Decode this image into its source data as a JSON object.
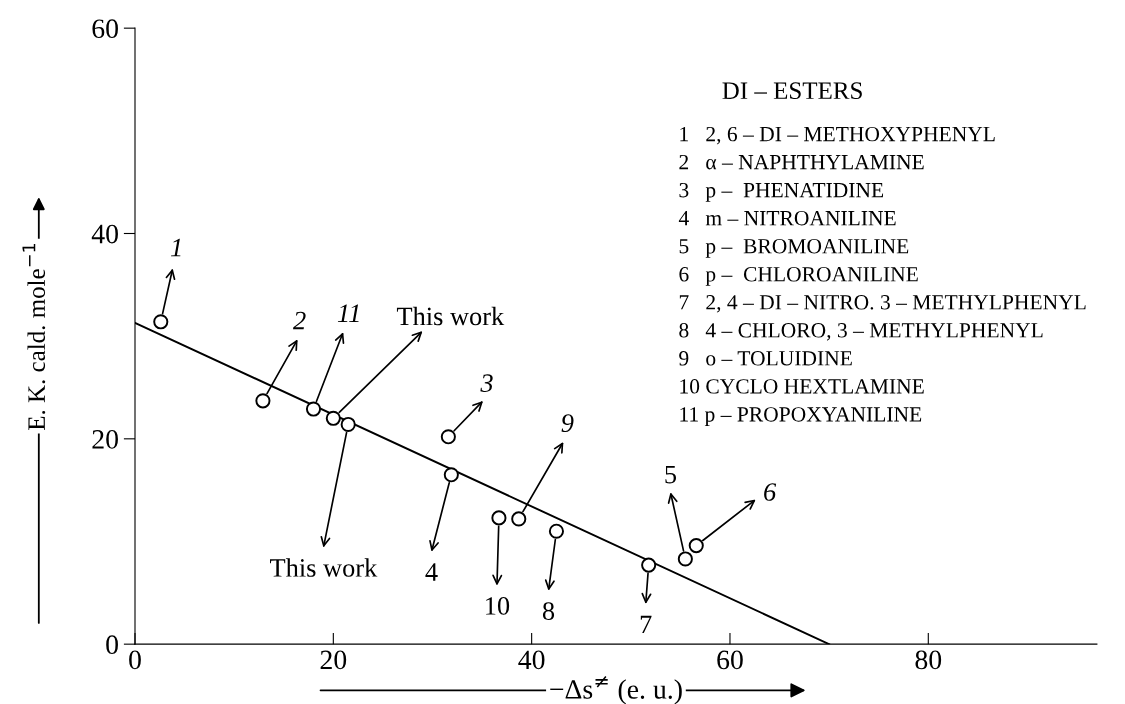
{
  "chart_data": {
    "type": "scatter",
    "xlabel": "−Δs$^{≠}$ (e. u.)",
    "ylabel": "E. K. cald. mole$^{−1}$",
    "xlim": [
      0,
      97
    ],
    "ylim": [
      0,
      60
    ],
    "xticks": [
      0,
      20,
      40,
      60,
      80
    ],
    "yticks": [
      0,
      20,
      40,
      60
    ],
    "grid": false,
    "legend": false,
    "series": [
      {
        "marker": "circle",
        "color": "#000000",
        "x": [
          2.6,
          12.9,
          31.6,
          31.9,
          55.5,
          56.6,
          51.8,
          42.5,
          38.7,
          36.7,
          18.0,
          20.0,
          21.5
        ],
        "values": [
          31.4,
          23.7,
          20.2,
          16.5,
          8.3,
          9.6,
          7.7,
          11.0,
          12.2,
          12.3,
          22.9,
          22.0,
          21.4
        ]
      },
      {
        "type": "line",
        "color": "#000000",
        "x": [
          0,
          70
        ],
        "values": [
          31.3,
          0
        ]
      }
    ],
    "annotations": [
      {
        "text": "1",
        "x": 2.6,
        "y": 31.4
      },
      {
        "text": "2",
        "x": 12.9,
        "y": 23.7
      },
      {
        "text": "3",
        "x": 31.6,
        "y": 20.2
      },
      {
        "text": "4",
        "x": 31.9,
        "y": 16.5
      },
      {
        "text": "5",
        "x": 55.5,
        "y": 8.3
      },
      {
        "text": "6",
        "x": 56.6,
        "y": 9.6
      },
      {
        "text": "7",
        "x": 51.8,
        "y": 7.7
      },
      {
        "text": "8",
        "x": 42.5,
        "y": 11.0
      },
      {
        "text": "9",
        "x": 38.7,
        "y": 12.2
      },
      {
        "text": "10",
        "x": 36.7,
        "y": 12.3
      },
      {
        "text": "11",
        "x": 18.0,
        "y": 22.9
      },
      {
        "text": "This work",
        "x": 20.0,
        "y": 22.0
      },
      {
        "text": "This work",
        "x": 21.5,
        "y": 21.4
      },
      "DI – ESTERS",
      "1   2, 6 – DI – METHOXYPHENYL",
      "2   α – NAPHTHYLAMINE",
      "3   p –  PHENATIDINE",
      "4   m – NITROANILINE",
      "5   p –  BROMOANILINE",
      "6   p –  CHLOROANILINE",
      "7   2, 4 – DI – NITRO. 3 – METHYLPHENYL",
      "8   4 – CHLORO, 3 – METHYLPHENYL",
      "9   o – TOLUIDINE",
      "10 CYCLO HEXTLAMINE",
      "11 p – PROPOXYANILINE"
    ]
  }
}
